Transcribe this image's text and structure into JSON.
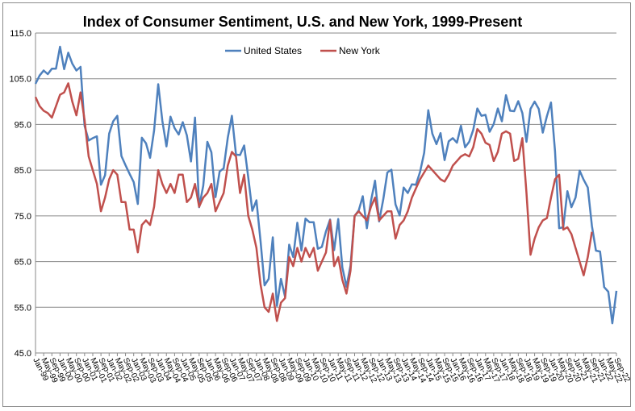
{
  "chart_data": {
    "type": "line",
    "title": "Index of Consumer Sentiment, U.S. and New York, 1999-Present",
    "xlabel": "",
    "ylabel": "",
    "ylim": [
      45.0,
      115.0
    ],
    "y_ticks": [
      "45.0",
      "55.0",
      "65.0",
      "75.0",
      "85.0",
      "95.0",
      "105.0",
      "115.0"
    ],
    "grid": "horizontal",
    "legend_position": "top-center",
    "x_tick_labels": [
      "Jan-99",
      "May-99",
      "Sep-99",
      "Jan-00",
      "May-00",
      "Sep-00",
      "Jan-01",
      "May-01",
      "Sep-01",
      "Jan-02",
      "May-02",
      "Sep-02",
      "Jan-03",
      "May-03",
      "Sep-03",
      "Jan-04",
      "May-04",
      "Sep-04",
      "Jan-05",
      "May-05",
      "Sep-05",
      "Jan-06",
      "May-06",
      "Sep-06",
      "Jan-07",
      "May-07",
      "Sep-07",
      "Jan-08",
      "May-08",
      "Sep-08",
      "Jan-09",
      "May-09",
      "Sep-09",
      "Jan-10",
      "May-10",
      "Sep-10",
      "Jan-11",
      "May-11",
      "Sep-11",
      "Jan-12",
      "May-12",
      "Sep-12",
      "Jan-13",
      "May-13",
      "Sep-13",
      "Jan-14",
      "May-14",
      "Sep-14",
      "Jan-15",
      "May-15",
      "Sep-15",
      "Jan-16",
      "May-16",
      "Sep-16",
      "Jan-17",
      "May-17",
      "Sep-17",
      "Jan-18",
      "May-18",
      "Sep-18",
      "Jan-19",
      "May-19",
      "Sep-19",
      "Jan-20",
      "May-20",
      "Sep-20",
      "Jan-21",
      "May-21",
      "Sep-21",
      "Jan-22",
      "May-22",
      "Sep-22"
    ],
    "series": [
      {
        "name": "United States",
        "color": "#4f81bd",
        "points": [
          [
            "Jan-99",
            103.9
          ],
          [
            "Mar-99",
            105.7
          ],
          [
            "May-99",
            106.8
          ],
          [
            "Jul-99",
            106.0
          ],
          [
            "Sep-99",
            107.2
          ],
          [
            "Nov-99",
            107.2
          ],
          [
            "Jan-00",
            112.0
          ],
          [
            "Mar-00",
            107.1
          ],
          [
            "May-00",
            110.7
          ],
          [
            "Jul-00",
            108.3
          ],
          [
            "Sep-00",
            106.8
          ],
          [
            "Nov-00",
            107.6
          ],
          [
            "Jan-01",
            94.7
          ],
          [
            "Mar-01",
            91.5
          ],
          [
            "May-01",
            92.0
          ],
          [
            "Jul-01",
            92.4
          ],
          [
            "Sep-01",
            81.8
          ],
          [
            "Nov-01",
            83.9
          ],
          [
            "Jan-02",
            93.0
          ],
          [
            "Mar-02",
            95.7
          ],
          [
            "May-02",
            96.9
          ],
          [
            "Jul-02",
            88.1
          ],
          [
            "Sep-02",
            86.1
          ],
          [
            "Nov-02",
            84.2
          ],
          [
            "Jan-03",
            82.4
          ],
          [
            "Mar-03",
            77.6
          ],
          [
            "May-03",
            92.1
          ],
          [
            "Jul-03",
            90.9
          ],
          [
            "Sep-03",
            87.7
          ],
          [
            "Nov-03",
            93.7
          ],
          [
            "Jan-04",
            103.8
          ],
          [
            "Mar-04",
            95.8
          ],
          [
            "May-04",
            90.2
          ],
          [
            "Jul-04",
            96.7
          ],
          [
            "Sep-04",
            94.2
          ],
          [
            "Nov-04",
            92.8
          ],
          [
            "Jan-05",
            95.5
          ],
          [
            "Mar-05",
            92.6
          ],
          [
            "May-05",
            86.9
          ],
          [
            "Jul-05",
            96.5
          ],
          [
            "Sep-05",
            76.9
          ],
          [
            "Nov-05",
            81.6
          ],
          [
            "Jan-06",
            91.2
          ],
          [
            "Mar-06",
            88.9
          ],
          [
            "May-06",
            79.1
          ],
          [
            "Jul-06",
            84.7
          ],
          [
            "Sep-06",
            85.4
          ],
          [
            "Nov-06",
            92.1
          ],
          [
            "Jan-07",
            96.9
          ],
          [
            "Mar-07",
            88.4
          ],
          [
            "May-07",
            88.3
          ],
          [
            "Jul-07",
            90.4
          ],
          [
            "Sep-07",
            83.4
          ],
          [
            "Nov-07",
            76.1
          ],
          [
            "Jan-08",
            78.4
          ],
          [
            "Mar-08",
            69.5
          ],
          [
            "May-08",
            59.8
          ],
          [
            "Jul-08",
            61.2
          ],
          [
            "Sep-08",
            70.3
          ],
          [
            "Nov-08",
            55.3
          ],
          [
            "Jan-09",
            61.2
          ],
          [
            "Mar-09",
            57.3
          ],
          [
            "May-09",
            68.7
          ],
          [
            "Jul-09",
            66.0
          ],
          [
            "Sep-09",
            73.5
          ],
          [
            "Nov-09",
            67.4
          ],
          [
            "Jan-10",
            74.4
          ],
          [
            "Mar-10",
            73.6
          ],
          [
            "May-10",
            73.6
          ],
          [
            "Jul-10",
            67.8
          ],
          [
            "Sep-10",
            68.2
          ],
          [
            "Nov-10",
            71.6
          ],
          [
            "Jan-11",
            74.2
          ],
          [
            "Mar-11",
            67.5
          ],
          [
            "May-11",
            74.3
          ],
          [
            "Jul-11",
            63.7
          ],
          [
            "Sep-11",
            59.5
          ],
          [
            "Nov-11",
            64.1
          ],
          [
            "Jan-12",
            75.0
          ],
          [
            "Mar-12",
            76.2
          ],
          [
            "May-12",
            79.3
          ],
          [
            "Jul-12",
            72.3
          ],
          [
            "Sep-12",
            78.3
          ],
          [
            "Nov-12",
            82.7
          ],
          [
            "Jan-13",
            73.8
          ],
          [
            "Mar-13",
            78.6
          ],
          [
            "May-13",
            84.5
          ],
          [
            "Jul-13",
            85.1
          ],
          [
            "Sep-13",
            77.5
          ],
          [
            "Nov-13",
            75.1
          ],
          [
            "Jan-14",
            81.2
          ],
          [
            "Mar-14",
            80.0
          ],
          [
            "May-14",
            81.9
          ],
          [
            "Jul-14",
            81.8
          ],
          [
            "Sep-14",
            84.6
          ],
          [
            "Nov-14",
            88.8
          ],
          [
            "Jan-15",
            98.1
          ],
          [
            "Mar-15",
            93.0
          ],
          [
            "May-15",
            90.7
          ],
          [
            "Jul-15",
            93.1
          ],
          [
            "Sep-15",
            87.2
          ],
          [
            "Nov-15",
            91.3
          ],
          [
            "Jan-16",
            92.0
          ],
          [
            "Mar-16",
            91.0
          ],
          [
            "May-16",
            94.7
          ],
          [
            "Jul-16",
            90.0
          ],
          [
            "Sep-16",
            91.2
          ],
          [
            "Nov-16",
            93.8
          ],
          [
            "Jan-17",
            98.5
          ],
          [
            "Mar-17",
            96.9
          ],
          [
            "May-17",
            97.1
          ],
          [
            "Jul-17",
            93.4
          ],
          [
            "Sep-17",
            95.1
          ],
          [
            "Nov-17",
            98.5
          ],
          [
            "Jan-18",
            95.7
          ],
          [
            "Mar-18",
            101.4
          ],
          [
            "May-18",
            98.0
          ],
          [
            "Jul-18",
            97.9
          ],
          [
            "Sep-18",
            100.1
          ],
          [
            "Nov-18",
            97.5
          ],
          [
            "Jan-19",
            91.2
          ],
          [
            "Mar-19",
            98.4
          ],
          [
            "May-19",
            100.0
          ],
          [
            "Jul-19",
            98.4
          ],
          [
            "Sep-19",
            93.2
          ],
          [
            "Nov-19",
            96.8
          ],
          [
            "Jan-20",
            99.8
          ],
          [
            "Mar-20",
            89.1
          ],
          [
            "May-20",
            72.3
          ],
          [
            "Jul-20",
            72.5
          ],
          [
            "Sep-20",
            80.4
          ],
          [
            "Nov-20",
            76.9
          ],
          [
            "Jan-21",
            79.0
          ],
          [
            "Mar-21",
            84.9
          ],
          [
            "May-21",
            82.9
          ],
          [
            "Jul-21",
            81.2
          ],
          [
            "Sep-21",
            72.8
          ],
          [
            "Nov-21",
            67.4
          ],
          [
            "Jan-22",
            67.2
          ],
          [
            "Mar-22",
            59.4
          ],
          [
            "May-22",
            58.4
          ],
          [
            "Jul-22",
            51.5
          ],
          [
            "Sep-22",
            58.6
          ]
        ]
      },
      {
        "name": "New York",
        "color": "#c0504d",
        "points": [
          [
            "Jan-99",
            101.0
          ],
          [
            "Mar-99",
            99.0
          ],
          [
            "May-99",
            98.0
          ],
          [
            "Jul-99",
            97.5
          ],
          [
            "Sep-99",
            96.5
          ],
          [
            "Nov-99",
            99.0
          ],
          [
            "Jan-00",
            101.5
          ],
          [
            "Mar-00",
            102.0
          ],
          [
            "May-00",
            104.0
          ],
          [
            "Jul-00",
            100.0
          ],
          [
            "Sep-00",
            97.0
          ],
          [
            "Nov-00",
            102.0
          ],
          [
            "Jan-01",
            96.0
          ],
          [
            "Mar-01",
            88.0
          ],
          [
            "May-01",
            85.0
          ],
          [
            "Jul-01",
            82.0
          ],
          [
            "Sep-01",
            76.0
          ],
          [
            "Nov-01",
            79.0
          ],
          [
            "Jan-02",
            83.0
          ],
          [
            "Mar-02",
            85.0
          ],
          [
            "May-02",
            84.0
          ],
          [
            "Jul-02",
            78.0
          ],
          [
            "Sep-02",
            78.0
          ],
          [
            "Nov-02",
            72.0
          ],
          [
            "Jan-03",
            72.0
          ],
          [
            "Mar-03",
            67.0
          ],
          [
            "May-03",
            73.0
          ],
          [
            "Jul-03",
            74.0
          ],
          [
            "Sep-03",
            73.0
          ],
          [
            "Nov-03",
            77.0
          ],
          [
            "Jan-04",
            85.0
          ],
          [
            "Mar-04",
            82.0
          ],
          [
            "May-04",
            80.0
          ],
          [
            "Jul-04",
            82.0
          ],
          [
            "Sep-04",
            80.0
          ],
          [
            "Nov-04",
            84.0
          ],
          [
            "Jan-05",
            84.0
          ],
          [
            "Mar-05",
            78.0
          ],
          [
            "May-05",
            79.0
          ],
          [
            "Jul-05",
            82.0
          ],
          [
            "Sep-05",
            77.0
          ],
          [
            "Nov-05",
            79.0
          ],
          [
            "Jan-06",
            80.0
          ],
          [
            "Mar-06",
            82.0
          ],
          [
            "May-06",
            76.0
          ],
          [
            "Jul-06",
            78.0
          ],
          [
            "Sep-06",
            80.0
          ],
          [
            "Nov-06",
            86.0
          ],
          [
            "Jan-07",
            89.0
          ],
          [
            "Mar-07",
            88.0
          ],
          [
            "May-07",
            80.0
          ],
          [
            "Jul-07",
            84.0
          ],
          [
            "Sep-07",
            75.0
          ],
          [
            "Nov-07",
            72.0
          ],
          [
            "Jan-08",
            68.0
          ],
          [
            "Mar-08",
            60.0
          ],
          [
            "May-08",
            55.0
          ],
          [
            "Jul-08",
            54.0
          ],
          [
            "Sep-08",
            58.0
          ],
          [
            "Nov-08",
            52.0
          ],
          [
            "Jan-09",
            56.0
          ],
          [
            "Mar-09",
            57.0
          ],
          [
            "May-09",
            66.0
          ],
          [
            "Jul-09",
            64.0
          ],
          [
            "Sep-09",
            68.0
          ],
          [
            "Nov-09",
            65.0
          ],
          [
            "Jan-10",
            68.0
          ],
          [
            "Mar-10",
            66.0
          ],
          [
            "May-10",
            68.0
          ],
          [
            "Jul-10",
            63.0
          ],
          [
            "Sep-10",
            65.0
          ],
          [
            "Nov-10",
            67.0
          ],
          [
            "Jan-11",
            74.0
          ],
          [
            "Mar-11",
            64.0
          ],
          [
            "May-11",
            66.0
          ],
          [
            "Jul-11",
            61.0
          ],
          [
            "Sep-11",
            58.0
          ],
          [
            "Nov-11",
            63.0
          ],
          [
            "Jan-12",
            75.0
          ],
          [
            "Mar-12",
            76.0
          ],
          [
            "May-12",
            75.0
          ],
          [
            "Jul-12",
            74.0
          ],
          [
            "Sep-12",
            77.0
          ],
          [
            "Nov-12",
            79.0
          ],
          [
            "Jan-13",
            74.0
          ],
          [
            "Mar-13",
            75.0
          ],
          [
            "May-13",
            76.0
          ],
          [
            "Jul-13",
            76.0
          ],
          [
            "Sep-13",
            70.0
          ],
          [
            "Nov-13",
            73.0
          ],
          [
            "Jan-14",
            74.0
          ],
          [
            "Mar-14",
            76.0
          ],
          [
            "May-14",
            79.0
          ],
          [
            "Jul-14",
            81.0
          ],
          [
            "Sep-14",
            83.0
          ],
          [
            "Nov-14",
            84.5
          ],
          [
            "Jan-15",
            86.0
          ],
          [
            "Mar-15",
            85.0
          ],
          [
            "May-15",
            84.0
          ],
          [
            "Jul-15",
            83.0
          ],
          [
            "Sep-15",
            82.5
          ],
          [
            "Nov-15",
            84.0
          ],
          [
            "Jan-16",
            86.0
          ],
          [
            "Mar-16",
            87.0
          ],
          [
            "May-16",
            88.0
          ],
          [
            "Jul-16",
            88.5
          ],
          [
            "Sep-16",
            88.0
          ],
          [
            "Nov-16",
            90.0
          ],
          [
            "Jan-17",
            94.0
          ],
          [
            "Mar-17",
            93.0
          ],
          [
            "May-17",
            91.0
          ],
          [
            "Jul-17",
            90.5
          ],
          [
            "Sep-17",
            87.0
          ],
          [
            "Nov-17",
            89.0
          ],
          [
            "Jan-18",
            93.0
          ],
          [
            "Mar-18",
            93.5
          ],
          [
            "May-18",
            93.0
          ],
          [
            "Jul-18",
            87.0
          ],
          [
            "Sep-18",
            87.5
          ],
          [
            "Nov-18",
            92.0
          ],
          [
            "Jan-19",
            80.0
          ],
          [
            "Mar-19",
            66.5
          ],
          [
            "May-19",
            70.0
          ],
          [
            "Jul-19",
            72.5
          ],
          [
            "Sep-19",
            74.0
          ],
          [
            "Nov-19",
            74.5
          ],
          [
            "Jan-20",
            79.0
          ],
          [
            "Mar-20",
            83.0
          ],
          [
            "May-20",
            84.0
          ],
          [
            "Jul-20",
            72.0
          ],
          [
            "Sep-20",
            72.5
          ],
          [
            "Nov-20",
            71.0
          ],
          [
            "Jan-21",
            68.0
          ],
          [
            "Mar-21",
            65.0
          ],
          [
            "May-21",
            62.0
          ],
          [
            "Jul-21",
            66.0
          ],
          [
            "Sep-21",
            71.5
          ]
        ]
      }
    ]
  }
}
